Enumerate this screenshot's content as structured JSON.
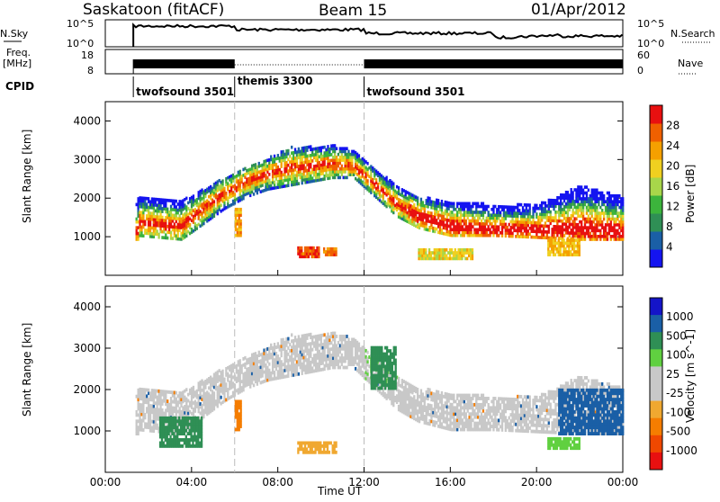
{
  "header": {
    "site": "Saskatoon (fitACF)",
    "beam": "Beam 15",
    "date": "01/Apr/2012"
  },
  "top_panels": {
    "nsky_label": "N.Sky",
    "nsky_ticks": [
      "10^5",
      "10^0"
    ],
    "nsearch_label": "N.Search",
    "nsearch_ticks": [
      "10^5",
      "10^0"
    ],
    "freq_label_1": "Freq.",
    "freq_label_2": "[MHz]",
    "freq_ticks": [
      "18",
      "8"
    ],
    "nave_label": "Nave",
    "nave_ticks": [
      "60",
      "0"
    ],
    "cpid_label": "CPID",
    "cpid_segments": [
      {
        "label": "twofsound 3501",
        "start_hour": 1.3,
        "end_hour": 6.0
      },
      {
        "label": "themis 3300",
        "start_hour": 6.0,
        "end_hour": 12.0
      },
      {
        "label": "twofsound 3501",
        "start_hour": 12.0,
        "end_hour": 24.0
      }
    ]
  },
  "colors": {
    "power_scale": [
      "#1414f0",
      "#1a5fa6",
      "#2f8f55",
      "#3cb43c",
      "#a8d64a",
      "#f0d020",
      "#f5a000",
      "#f06000",
      "#e81010"
    ],
    "velocity_scale": [
      "#e81010",
      "#f04800",
      "#f57d00",
      "#f0a830",
      "#c8c8c8",
      "#c8c8c8",
      "#60d040",
      "#2f8f55",
      "#1a5fa6",
      "#1414c8"
    ],
    "backscatter_gray": "#c8c8c8"
  },
  "chart_data": [
    {
      "type": "heatmap",
      "panel": "power",
      "ylabel": "Slant Range [km]",
      "xlabel": "",
      "xlim_hours": [
        0,
        24
      ],
      "ylim": [
        0,
        4500
      ],
      "yticks": [
        "1000",
        "2000",
        "3000",
        "4000"
      ],
      "colorbar": {
        "label": "Power [dB]",
        "ticks": [
          "4",
          "8",
          "12",
          "16",
          "20",
          "24",
          "28"
        ],
        "range": [
          0,
          30
        ]
      },
      "backscatter_bands": [
        {
          "hour": 1.5,
          "lower_km": 1000,
          "upper_km": 2000,
          "peak_km": 1350
        },
        {
          "hour": 2.5,
          "lower_km": 950,
          "upper_km": 1950,
          "peak_km": 1300
        },
        {
          "hour": 3.5,
          "lower_km": 900,
          "upper_km": 1900,
          "peak_km": 1250
        },
        {
          "hour": 4.5,
          "lower_km": 1300,
          "upper_km": 2200,
          "peak_km": 1700
        },
        {
          "hour": 5.5,
          "lower_km": 1700,
          "upper_km": 2500,
          "peak_km": 2100
        },
        {
          "hour": 6.5,
          "lower_km": 2000,
          "upper_km": 2800,
          "peak_km": 2400
        },
        {
          "hour": 7.5,
          "lower_km": 2200,
          "upper_km": 3000,
          "peak_km": 2600
        },
        {
          "hour": 8.5,
          "lower_km": 2300,
          "upper_km": 3300,
          "peak_km": 2750
        },
        {
          "hour": 9.5,
          "lower_km": 2400,
          "upper_km": 3300,
          "peak_km": 2800
        },
        {
          "hour": 10.5,
          "lower_km": 2500,
          "upper_km": 3350,
          "peak_km": 2850
        },
        {
          "hour": 11.5,
          "lower_km": 2500,
          "upper_km": 3200,
          "peak_km": 2800
        },
        {
          "hour": 12.5,
          "lower_km": 2000,
          "upper_km": 2700,
          "peak_km": 2300
        },
        {
          "hour": 13.5,
          "lower_km": 1500,
          "upper_km": 2300,
          "peak_km": 1800
        },
        {
          "hour": 14.5,
          "lower_km": 1200,
          "upper_km": 2000,
          "peak_km": 1500
        },
        {
          "hour": 16,
          "lower_km": 1000,
          "upper_km": 1900,
          "peak_km": 1250
        },
        {
          "hour": 18,
          "lower_km": 1000,
          "upper_km": 1800,
          "peak_km": 1150
        },
        {
          "hour": 20,
          "lower_km": 950,
          "upper_km": 1800,
          "peak_km": 1150
        },
        {
          "hour": 22,
          "lower_km": 900,
          "upper_km": 2300,
          "peak_km": 1200
        },
        {
          "hour": 24,
          "lower_km": 900,
          "upper_km": 2000,
          "peak_km": 1100
        }
      ],
      "patches": [
        {
          "hour_start": 6.0,
          "hour_end": 6.3,
          "lower_km": 1000,
          "upper_km": 1700,
          "power_db": 22
        },
        {
          "hour_start": 8.9,
          "hour_end": 9.9,
          "lower_km": 450,
          "upper_km": 700,
          "power_db": 26
        },
        {
          "hour_start": 10.1,
          "hour_end": 10.7,
          "lower_km": 500,
          "upper_km": 700,
          "power_db": 24
        },
        {
          "hour_start": 14.5,
          "hour_end": 17.0,
          "lower_km": 400,
          "upper_km": 650,
          "power_db": 18
        },
        {
          "hour_start": 20.5,
          "hour_end": 22.0,
          "lower_km": 500,
          "upper_km": 900,
          "power_db": 20
        }
      ]
    },
    {
      "type": "heatmap",
      "panel": "velocity",
      "ylabel": "Slant Range [km]",
      "xlabel": "Time UT",
      "xlim_hours": [
        0,
        24
      ],
      "ylim": [
        0,
        4500
      ],
      "yticks": [
        "1000",
        "2000",
        "3000",
        "4000"
      ],
      "xticks": [
        "00:00",
        "04:00",
        "08:00",
        "12:00",
        "16:00",
        "20:00",
        "00:00"
      ],
      "colorbar": {
        "label": "Velocity [m s^-1]",
        "ticks": [
          "1000",
          "500",
          "100",
          "25",
          "-25",
          "-100",
          "-500",
          "-1000"
        ]
      },
      "patches": [
        {
          "hour_start": 2.5,
          "hour_end": 4.5,
          "lower_km": 600,
          "upper_km": 1300,
          "velocity": 200
        },
        {
          "hour_start": 6.0,
          "hour_end": 6.3,
          "lower_km": 1000,
          "upper_km": 1700,
          "velocity": -700
        },
        {
          "hour_start": 8.9,
          "hour_end": 10.7,
          "lower_km": 450,
          "upper_km": 700,
          "velocity": -200
        },
        {
          "hour_start": 12.3,
          "hour_end": 13.5,
          "lower_km": 2000,
          "upper_km": 3000,
          "velocity": 150
        },
        {
          "hour_start": 20.5,
          "hour_end": 22.0,
          "lower_km": 550,
          "upper_km": 800,
          "velocity": 100
        },
        {
          "hour_start": 21.0,
          "hour_end": 24.0,
          "lower_km": 900,
          "upper_km": 2000,
          "velocity": 700
        }
      ]
    }
  ]
}
